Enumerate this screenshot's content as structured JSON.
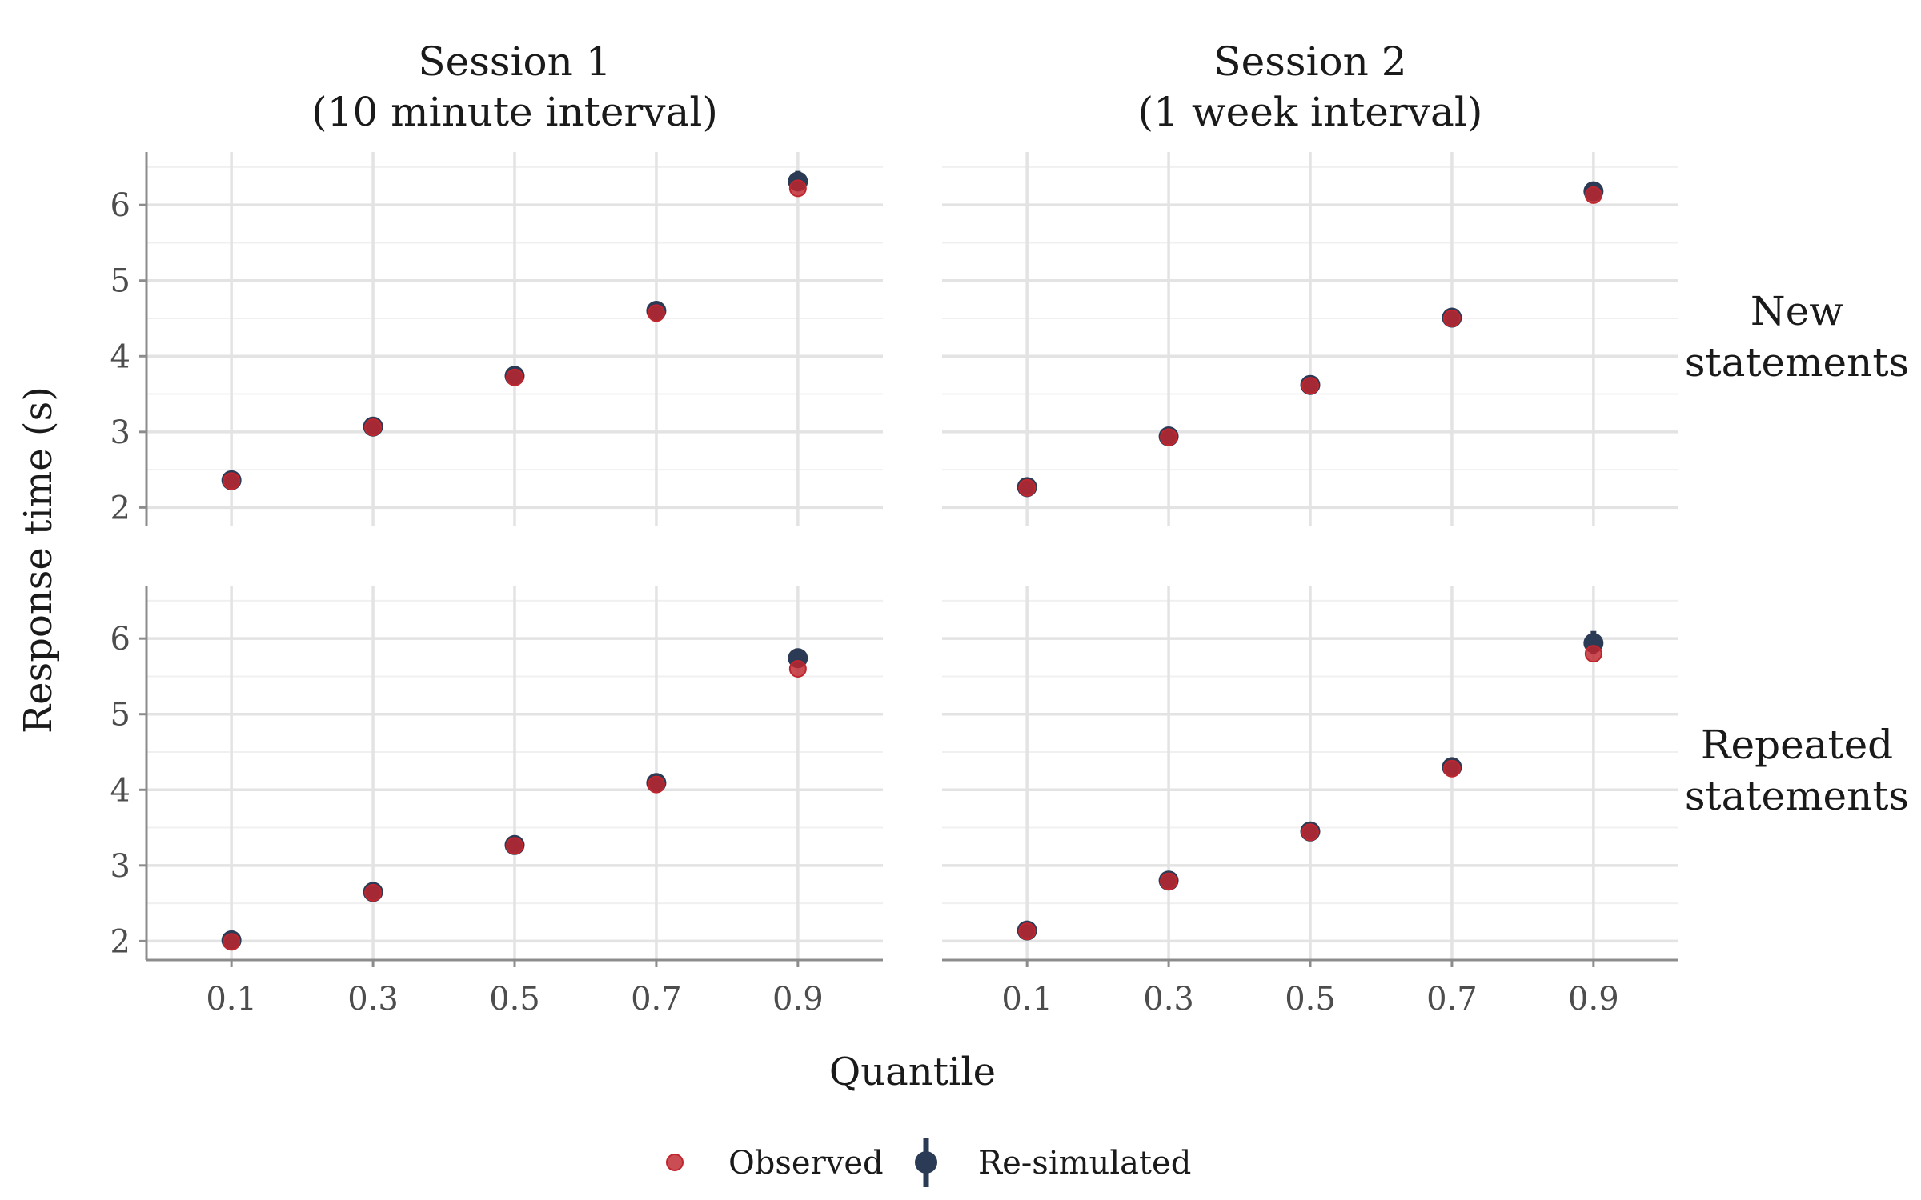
{
  "chart_data": {
    "type": "scatter",
    "x_label": "Quantile",
    "y_label": "Response time (s)",
    "x_ticks": [
      "0.1",
      "0.3",
      "0.5",
      "0.7",
      "0.9"
    ],
    "x_values": [
      0.1,
      0.3,
      0.5,
      0.7,
      0.9
    ],
    "xlim": [
      -0.02,
      1.02
    ],
    "y_ticks": [
      2,
      3,
      4,
      5,
      6
    ],
    "ylim": [
      1.75,
      6.7
    ],
    "grid": true,
    "legend_position": "bottom",
    "legend": [
      {
        "key": "observed",
        "label": "Observed",
        "color": "#c0262e"
      },
      {
        "key": "resimulated",
        "label": "Re-simulated",
        "color": "#2b3a55"
      }
    ],
    "columns": [
      {
        "label_line1": "Session 1",
        "label_line2": "(10 minute interval)"
      },
      {
        "label_line1": "Session 2",
        "label_line2": "(1 week interval)"
      }
    ],
    "rows": [
      {
        "label_line1": "New",
        "label_line2": "statements"
      },
      {
        "label_line1": "Repeated",
        "label_line2": "statements"
      }
    ],
    "panels": [
      {
        "column": 0,
        "row": 0,
        "observed": [
          2.35,
          3.06,
          3.72,
          4.57,
          6.22
        ],
        "resimulated": [
          2.36,
          3.07,
          3.74,
          4.6,
          6.31
        ],
        "resimulated_interval": [
          [
            2.33,
            2.39
          ],
          [
            3.04,
            3.1
          ],
          [
            3.71,
            3.77
          ],
          [
            4.56,
            4.65
          ],
          [
            6.2,
            6.45
          ]
        ]
      },
      {
        "column": 1,
        "row": 0,
        "observed": [
          2.26,
          2.93,
          3.61,
          4.5,
          6.13
        ],
        "resimulated": [
          2.27,
          2.94,
          3.62,
          4.51,
          6.18
        ],
        "resimulated_interval": [
          [
            2.24,
            2.3
          ],
          [
            2.91,
            2.97
          ],
          [
            3.59,
            3.65
          ],
          [
            4.48,
            4.55
          ],
          [
            6.07,
            6.3
          ]
        ]
      },
      {
        "column": 0,
        "row": 1,
        "observed": [
          1.99,
          2.64,
          3.26,
          4.07,
          5.6
        ],
        "resimulated": [
          2.01,
          2.65,
          3.27,
          4.09,
          5.74
        ],
        "resimulated_interval": [
          [
            1.98,
            2.04
          ],
          [
            2.62,
            2.68
          ],
          [
            3.24,
            3.3
          ],
          [
            4.05,
            4.13
          ],
          [
            5.62,
            5.87
          ]
        ]
      },
      {
        "column": 1,
        "row": 1,
        "observed": [
          2.13,
          2.79,
          3.44,
          4.28,
          5.8
        ],
        "resimulated": [
          2.14,
          2.8,
          3.45,
          4.3,
          5.94
        ],
        "resimulated_interval": [
          [
            2.11,
            2.17
          ],
          [
            2.77,
            2.83
          ],
          [
            3.42,
            3.48
          ],
          [
            4.26,
            4.34
          ],
          [
            5.8,
            6.1
          ]
        ]
      }
    ]
  }
}
